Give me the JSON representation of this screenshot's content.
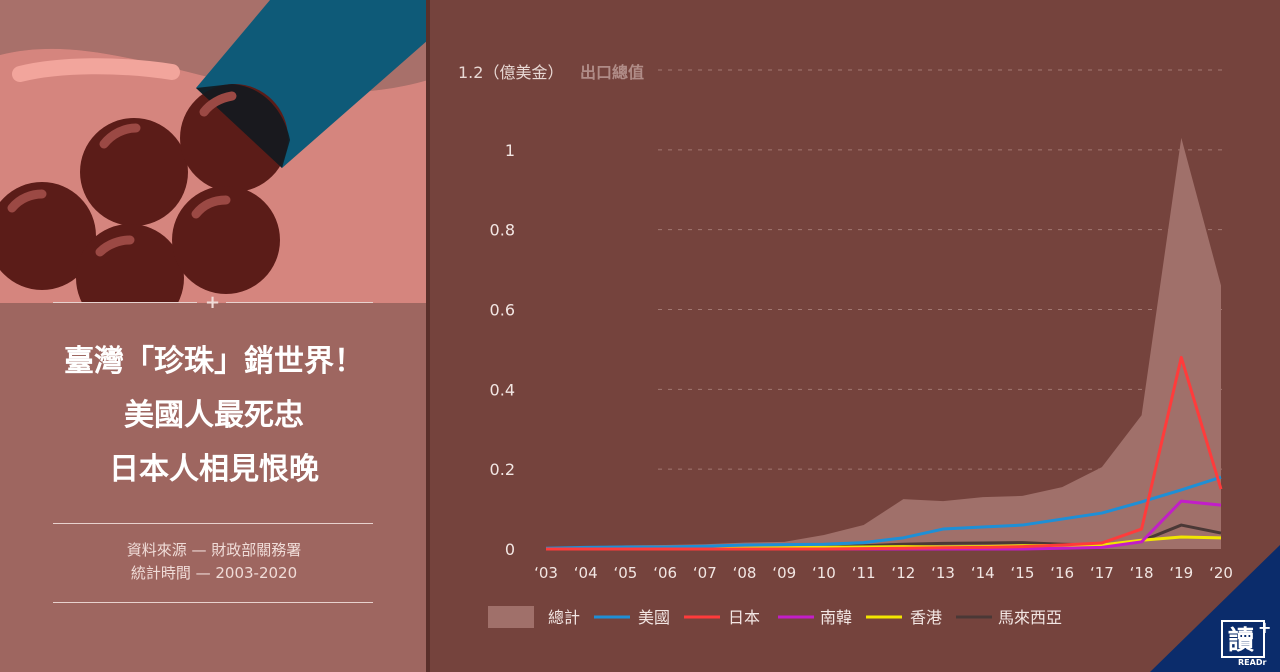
{
  "headline": {
    "line1": "臺灣「珍珠」銷世界！",
    "line2": "美國人最死忠",
    "line3": "日本人相見恨晚"
  },
  "source": {
    "line1": "資料來源 — 財政部關務署",
    "line2": "統計時間  — 2003-2020"
  },
  "logo": {
    "text": "讀",
    "sub": "READr"
  },
  "colors": {
    "background": "#75433d",
    "panel": "#9e6660",
    "total_area": "#a0706a",
    "usa": "#1e8fd6",
    "japan": "#ff3b3b",
    "korea": "#c21ec8",
    "hongkong": "#f2e600",
    "malaysia": "#4a3836"
  },
  "chart_data": {
    "type": "line",
    "ylabel_prefix": "1.2（億美金）",
    "ylabel_title": "出口總值",
    "ylim": [
      0,
      1.2
    ],
    "yticks": [
      "1",
      "0.8",
      "0.6",
      "0.4",
      "0.2",
      "0"
    ],
    "ytick_values": [
      1,
      0.8,
      0.6,
      0.4,
      0.2,
      0
    ],
    "categories": [
      "‘03",
      "‘04",
      "‘05",
      "‘06",
      "‘07",
      "‘08",
      "‘09",
      "‘10",
      "‘11",
      "‘12",
      "‘13",
      "‘14",
      "‘15",
      "‘16",
      "‘17",
      "‘18",
      "‘19",
      "‘20"
    ],
    "grid": true,
    "legend_position": "bottom",
    "series": [
      {
        "name": "總計",
        "kind": "area",
        "color": "#a0706a",
        "values": [
          0.003,
          0.006,
          0.009,
          0.01,
          0.012,
          0.016,
          0.018,
          0.035,
          0.06,
          0.125,
          0.12,
          0.13,
          0.133,
          0.155,
          0.205,
          0.335,
          1.03,
          0.66
        ]
      },
      {
        "name": "美國",
        "kind": "line",
        "color": "#1e8fd6",
        "values": [
          0.002,
          0.004,
          0.005,
          0.005,
          0.007,
          0.01,
          0.011,
          0.012,
          0.016,
          0.028,
          0.05,
          0.055,
          0.06,
          0.075,
          0.09,
          0.118,
          0.148,
          0.18
        ]
      },
      {
        "name": "日本",
        "kind": "line",
        "color": "#ff3b3b",
        "values": [
          0,
          0,
          0,
          0,
          0,
          0,
          0,
          0,
          0.001,
          0.002,
          0.003,
          0.004,
          0.006,
          0.01,
          0.015,
          0.05,
          0.48,
          0.15
        ]
      },
      {
        "name": "南韓",
        "kind": "line",
        "color": "#c21ec8",
        "values": [
          0,
          0,
          0,
          0,
          0,
          0,
          0,
          0,
          0,
          0,
          0,
          0,
          0,
          0.002,
          0.004,
          0.018,
          0.12,
          0.11
        ]
      },
      {
        "name": "香港",
        "kind": "line",
        "color": "#f2e600",
        "values": [
          0.001,
          0.001,
          0.001,
          0.001,
          0.002,
          0.002,
          0.003,
          0.004,
          0.005,
          0.006,
          0.005,
          0.006,
          0.008,
          0.009,
          0.01,
          0.022,
          0.03,
          0.028
        ]
      },
      {
        "name": "馬來西亞",
        "kind": "line",
        "color": "#4a3836",
        "values": [
          0,
          0,
          0,
          0,
          0,
          0,
          0,
          0.004,
          0.008,
          0.012,
          0.014,
          0.015,
          0.016,
          0.012,
          0.01,
          0.02,
          0.06,
          0.04
        ]
      }
    ]
  }
}
